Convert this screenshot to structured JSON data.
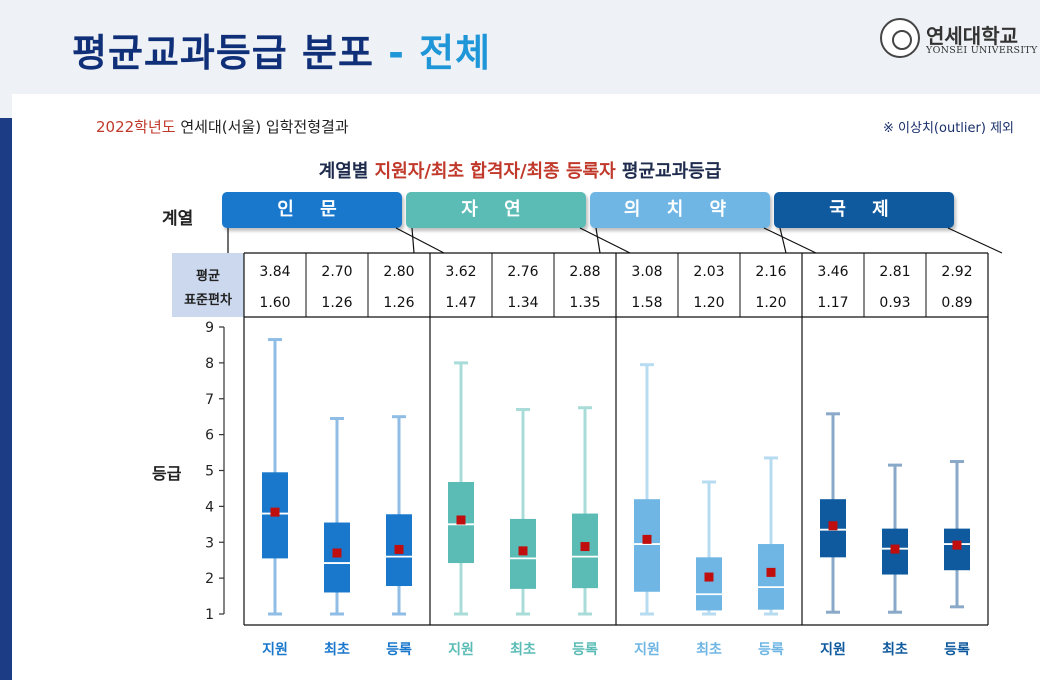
{
  "slide": {
    "title_main": "평균교과등급 분포",
    "title_dash": "-",
    "title_sub": "전체",
    "logo_kr": "연세대학교",
    "logo_en": "YONSEI UNIVERSITY",
    "subtitle_year": "2022학년도",
    "subtitle_rest": "연세대(서울) 입학전형결과",
    "note": "※ 이상치(outlier) 제외",
    "chart_title_pre": "계열별",
    "chart_title_hl": "지원자/최초 합격자/최종 등록자",
    "chart_title_post": "평균교과등급",
    "category_label": "계열",
    "stat_row1": "평균",
    "stat_row2": "표준편차",
    "y_label": "등급"
  },
  "colors": {
    "title": "#0f2f78",
    "accent": "#1f96d8",
    "highlight": "#c0392b",
    "mean_marker": "#c00d0d"
  },
  "chart_data": {
    "type": "boxplot",
    "title": "계열별 지원자/최초 합격자/최종 등록자 평균교과등급",
    "ylabel": "등급",
    "ylim": [
      1,
      9
    ],
    "yticks": [
      1,
      2,
      3,
      4,
      5,
      6,
      7,
      8,
      9
    ],
    "groups": [
      {
        "name": "인 문",
        "color": "#1a78cc",
        "boxes": [
          {
            "label": "지원",
            "mean": 3.84,
            "sd": 1.6,
            "min": 1.0,
            "q1": 2.55,
            "median": 3.8,
            "q3": 4.95,
            "max": 8.65,
            "color": "#1a78cc",
            "whisker": "#8fbde6"
          },
          {
            "label": "최초",
            "mean": 2.7,
            "sd": 1.26,
            "min": 1.0,
            "q1": 1.6,
            "median": 2.42,
            "q3": 3.55,
            "max": 6.45,
            "color": "#1a78cc",
            "whisker": "#8fbde6"
          },
          {
            "label": "등록",
            "mean": 2.8,
            "sd": 1.26,
            "min": 1.0,
            "q1": 1.78,
            "median": 2.6,
            "q3": 3.78,
            "max": 6.5,
            "color": "#1a78cc",
            "whisker": "#8fbde6"
          }
        ]
      },
      {
        "name": "자 연",
        "color": "#5bbcb6",
        "boxes": [
          {
            "label": "지원",
            "mean": 3.62,
            "sd": 1.47,
            "min": 1.0,
            "q1": 2.42,
            "median": 3.5,
            "q3": 4.68,
            "max": 8.0,
            "color": "#5bbcb6",
            "whisker": "#a9dcd8"
          },
          {
            "label": "최초",
            "mean": 2.76,
            "sd": 1.34,
            "min": 1.0,
            "q1": 1.7,
            "median": 2.55,
            "q3": 3.65,
            "max": 6.7,
            "color": "#5bbcb6",
            "whisker": "#a9dcd8"
          },
          {
            "label": "등록",
            "mean": 2.88,
            "sd": 1.35,
            "min": 1.0,
            "q1": 1.72,
            "median": 2.6,
            "q3": 3.8,
            "max": 6.75,
            "color": "#5bbcb6",
            "whisker": "#a9dcd8"
          }
        ]
      },
      {
        "name": "의 치 약",
        "color": "#6fb6e4",
        "boxes": [
          {
            "label": "지원",
            "mean": 3.08,
            "sd": 1.58,
            "min": 1.0,
            "q1": 1.62,
            "median": 2.95,
            "q3": 4.2,
            "max": 7.95,
            "color": "#6fb6e4",
            "whisker": "#b7dcf2"
          },
          {
            "label": "최초",
            "mean": 2.03,
            "sd": 1.2,
            "min": 1.0,
            "q1": 1.1,
            "median": 1.55,
            "q3": 2.58,
            "max": 4.68,
            "color": "#6fb6e4",
            "whisker": "#b7dcf2"
          },
          {
            "label": "등록",
            "mean": 2.16,
            "sd": 1.2,
            "min": 1.0,
            "q1": 1.12,
            "median": 1.75,
            "q3": 2.95,
            "max": 5.35,
            "color": "#6fb6e4",
            "whisker": "#b7dcf2"
          }
        ]
      },
      {
        "name": "국 제",
        "color": "#0f5a9e",
        "boxes": [
          {
            "label": "지원",
            "mean": 3.46,
            "sd": 1.17,
            "min": 1.05,
            "q1": 2.58,
            "median": 3.35,
            "q3": 4.2,
            "max": 6.58,
            "color": "#0f5a9e",
            "whisker": "#8aa8c8"
          },
          {
            "label": "최초",
            "mean": 2.81,
            "sd": 0.93,
            "min": 1.05,
            "q1": 2.1,
            "median": 2.82,
            "q3": 3.38,
            "max": 5.15,
            "color": "#0f5a9e",
            "whisker": "#8aa8c8"
          },
          {
            "label": "등록",
            "mean": 2.92,
            "sd": 0.89,
            "min": 1.2,
            "q1": 2.22,
            "median": 2.95,
            "q3": 3.38,
            "max": 5.25,
            "color": "#0f5a9e",
            "whisker": "#8aa8c8"
          }
        ]
      }
    ]
  }
}
